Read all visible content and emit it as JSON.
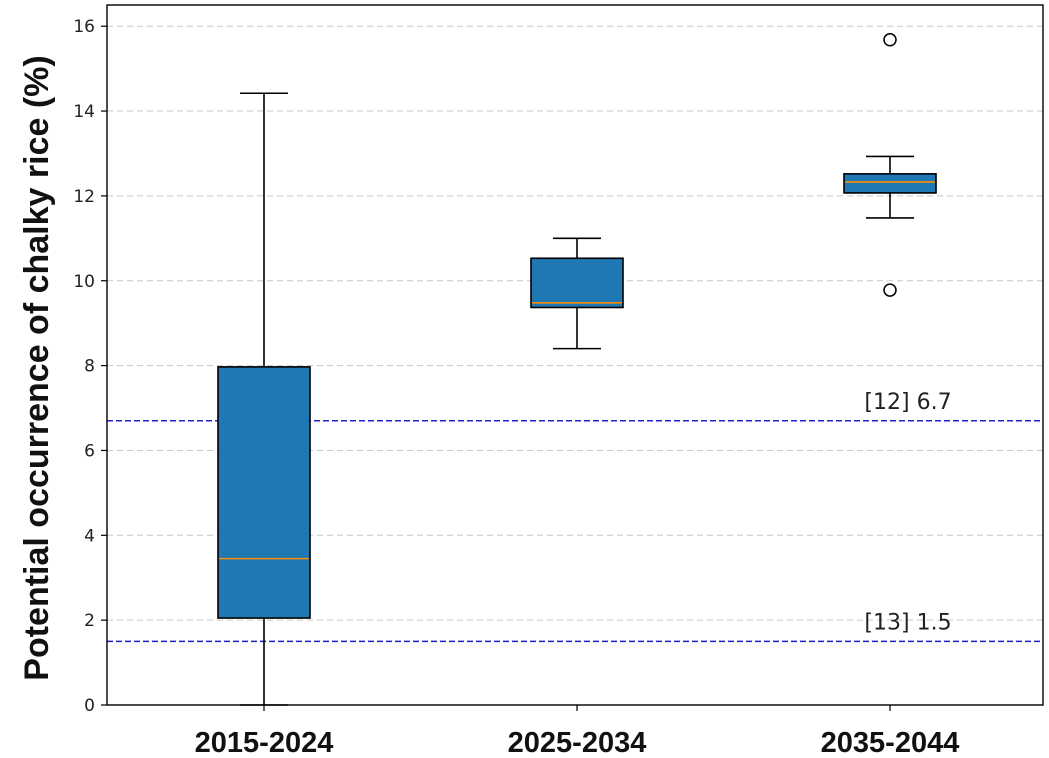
{
  "chart_data": {
    "type": "box",
    "title": "",
    "xlabel": "",
    "ylabel": "Potential occurrence of chalky rice (%)",
    "ylim": [
      0,
      16.5
    ],
    "yticks": [
      0,
      2,
      4,
      6,
      8,
      10,
      12,
      14,
      16
    ],
    "grid": "y-dashed",
    "categories": [
      "2015-2024",
      "2025-2034",
      "2035-2044"
    ],
    "boxes": [
      {
        "category": "2015-2024",
        "whisker_low": 0.0,
        "q1": 2.05,
        "median": 3.45,
        "q3": 7.97,
        "whisker_high": 14.42,
        "outliers": []
      },
      {
        "category": "2025-2034",
        "whisker_low": 8.4,
        "q1": 9.37,
        "median": 9.48,
        "q3": 10.53,
        "whisker_high": 11.0,
        "outliers": []
      },
      {
        "category": "2035-2044",
        "whisker_low": 11.48,
        "q1": 12.07,
        "median": 12.33,
        "q3": 12.52,
        "whisker_high": 12.93,
        "outliers": [
          15.68,
          9.78
        ]
      }
    ],
    "reference_lines": [
      {
        "value": 6.7,
        "label": "[12]  6.7"
      },
      {
        "value": 1.5,
        "label": "[13]  1.5"
      }
    ],
    "colors": {
      "box_fill": "#1f77b4",
      "median": "#ff8c00",
      "reference": "#1f1fc8",
      "grid": "#c8c8c8"
    }
  }
}
